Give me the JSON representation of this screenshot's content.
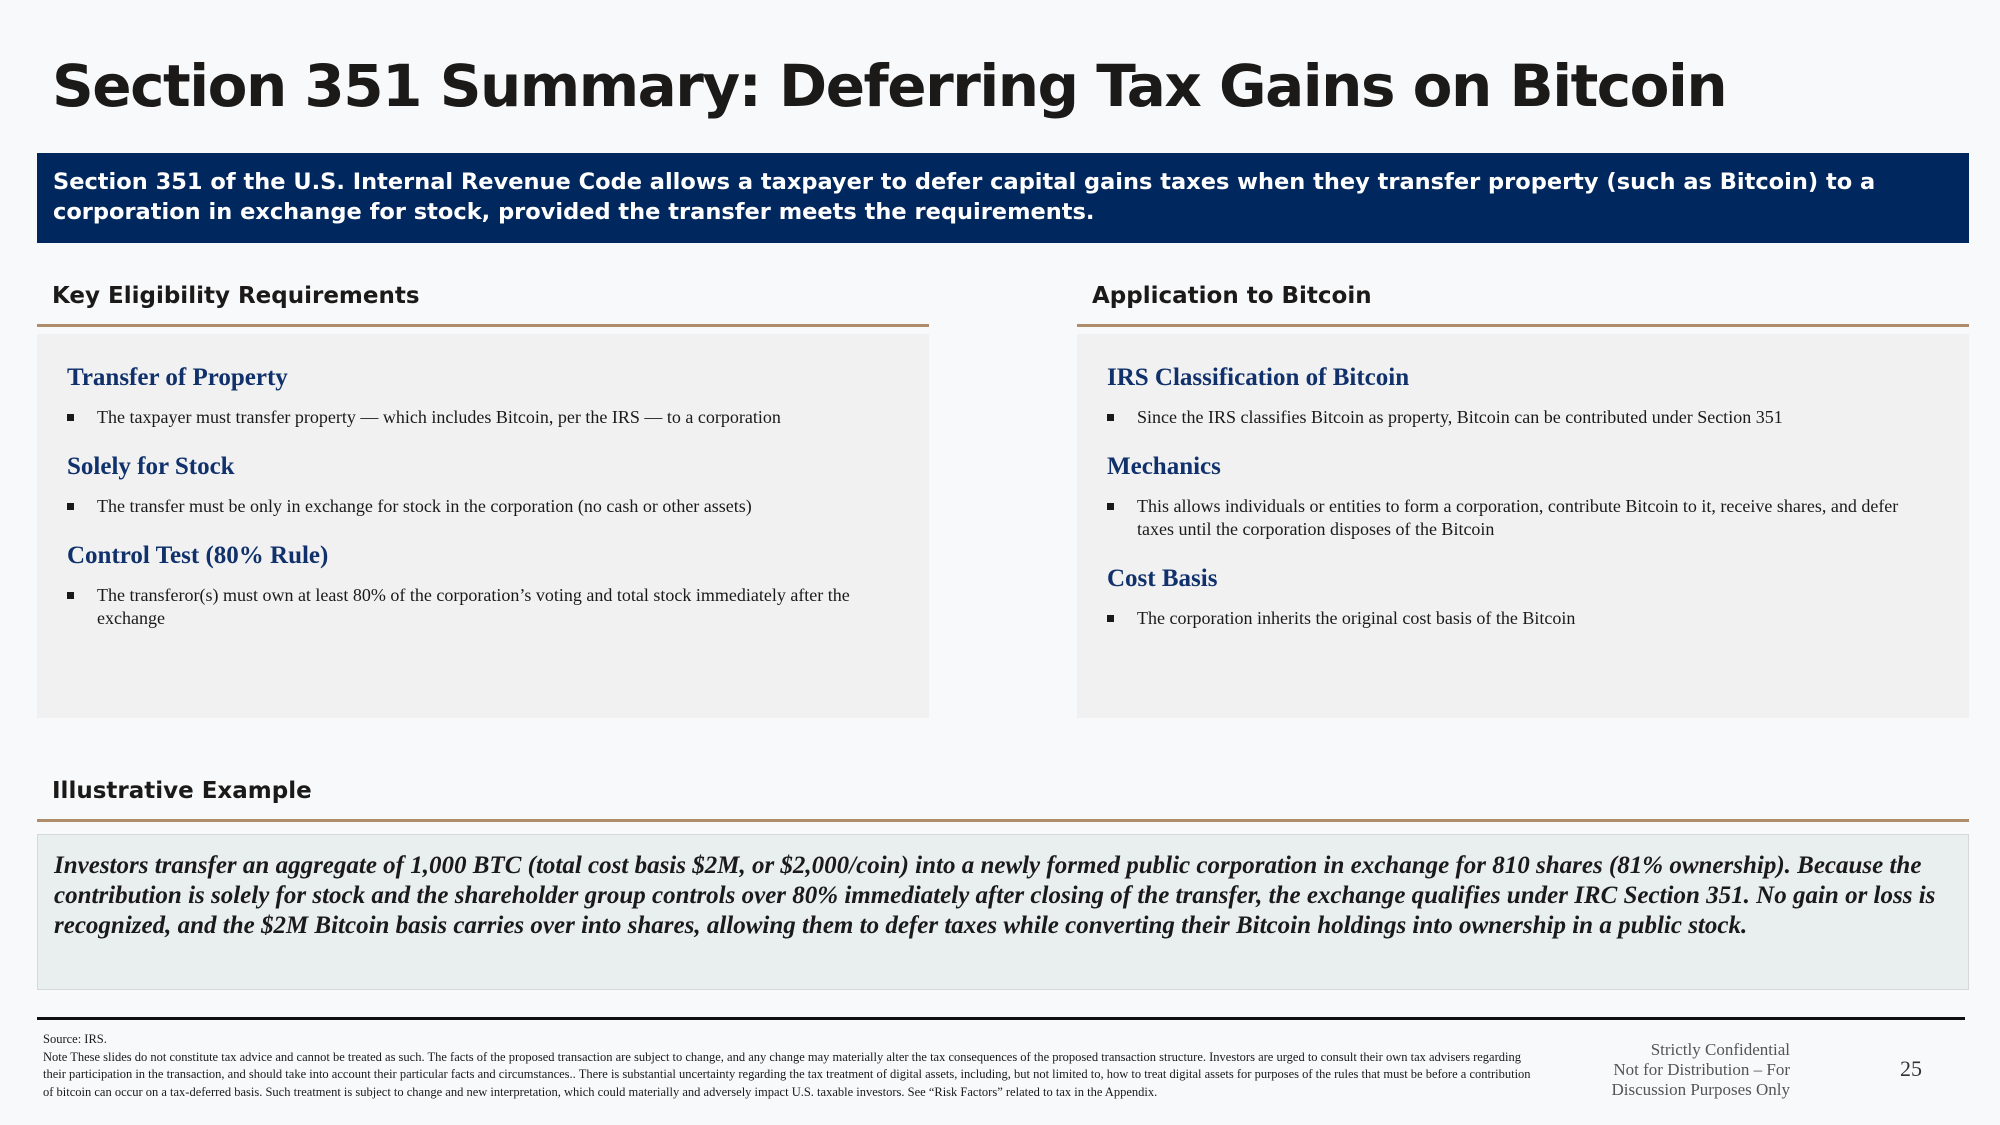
{
  "title": "Section 351 Summary: Deferring Tax Gains on Bitcoin",
  "intro": "Section 351 of the U.S. Internal Revenue Code allows a taxpayer to defer capital gains taxes when they transfer property (such as Bitcoin) to a corporation in exchange for stock, provided the transfer meets the requirements.",
  "left_section": {
    "heading": "Key Eligibility Requirements",
    "blocks": [
      {
        "title": "Transfer of Property",
        "bullet": "The taxpayer must transfer property — which includes Bitcoin, per the IRS — to a corporation"
      },
      {
        "title": "Solely for Stock",
        "bullet": "The transfer must be only in exchange for stock in the corporation (no cash or other assets)"
      },
      {
        "title": "Control Test (80% Rule)",
        "bullet": "The transferor(s) must own at least 80% of the corporation’s voting and total stock immediately after the exchange"
      }
    ]
  },
  "right_section": {
    "heading": "Application to Bitcoin",
    "blocks": [
      {
        "title": "IRS Classification of Bitcoin",
        "bullet": "Since the IRS classifies Bitcoin as property, Bitcoin can be contributed under Section 351"
      },
      {
        "title": "Mechanics",
        "bullet": "This allows individuals or entities to form a corporation, contribute Bitcoin to it, receive shares, and defer taxes until the corporation disposes of the Bitcoin"
      },
      {
        "title": "Cost Basis",
        "bullet": "The corporation inherits the original cost basis of the Bitcoin"
      }
    ]
  },
  "example": {
    "heading": "Illustrative Example",
    "text": "Investors transfer an aggregate of 1,000 BTC (total cost basis $2M, or $2,000/coin) into a newly formed public corporation in exchange for 810 shares (81% ownership). Because the contribution is solely for stock and the shareholder group controls over 80% immediately after closing of the transfer, the exchange qualifies under IRC Section 351. No gain or loss is recognized, and the $2M Bitcoin basis carries over into shares, allowing them to defer taxes while converting their Bitcoin holdings into ownership in a public stock."
  },
  "footer": {
    "source": "Source: IRS.",
    "note": "Note These slides do not constitute tax advice and cannot be treated as such. The facts of the proposed transaction are subject to change, and any change may materially alter the tax consequences of the proposed transaction structure. Investors are urged to consult their own tax advisers regarding their participation in the transaction, and should take into account their particular facts and circumstances.. There is substantial uncertainty regarding the tax treatment of digital assets, including, but not limited to, how to treat digital assets for purposes of the rules that must be before a contribution of bitcoin can occur on a tax-deferred basis. Such treatment is subject to change and new interpretation, which could materially and adversely impact U.S. taxable investors. See “Risk Factors” related to tax in the Appendix.",
    "confidential_line1": "Strictly Confidential",
    "confidential_line2": "Not for Distribution – For",
    "confidential_line3": "Discussion Purposes Only",
    "page_number": "25"
  }
}
